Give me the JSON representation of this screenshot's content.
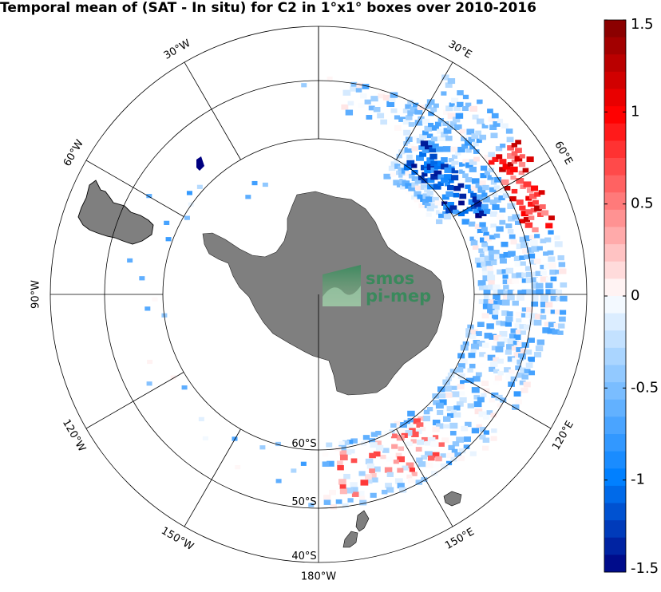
{
  "title": "Temporal mean of (SAT - In situ) for C2 in 1°x1° boxes over 2010-2016",
  "logo": {
    "line1": "smos",
    "line2": "pi-mep"
  },
  "lon_labels": [
    {
      "text": "30°E",
      "lon": 30
    },
    {
      "text": "60°E",
      "lon": 60
    },
    {
      "text": "120°E",
      "lon": 120
    },
    {
      "text": "150°E",
      "lon": 150
    },
    {
      "text": "180°W",
      "lon": 180
    },
    {
      "text": "150°W",
      "lon": -150
    },
    {
      "text": "120°W",
      "lon": -120
    },
    {
      "text": "90°W",
      "lon": -90
    },
    {
      "text": "60°W",
      "lon": -60
    },
    {
      "text": "30°W",
      "lon": -30
    }
  ],
  "lat_labels": [
    {
      "text": "60°S",
      "lat": -60
    },
    {
      "text": "50°S",
      "lat": -50
    },
    {
      "text": "40°S",
      "lat": -40
    }
  ],
  "colorbar": {
    "min": -1.5,
    "max": 1.5,
    "ticks": [
      {
        "value": 1.5,
        "label": "1.5"
      },
      {
        "value": 1,
        "label": "1"
      },
      {
        "value": 0.5,
        "label": "0.5"
      },
      {
        "value": 0,
        "label": "0"
      },
      {
        "value": -0.5,
        "label": "-0.5"
      },
      {
        "value": -1,
        "label": "-1"
      },
      {
        "value": -1.5,
        "label": "-1.5"
      }
    ]
  },
  "colors": {
    "land": "#7f7f7f",
    "grid": "#000000",
    "cmap_high": "#7f0000",
    "cmap_mid": "#ffffff",
    "cmap_low": "#00007f"
  }
}
